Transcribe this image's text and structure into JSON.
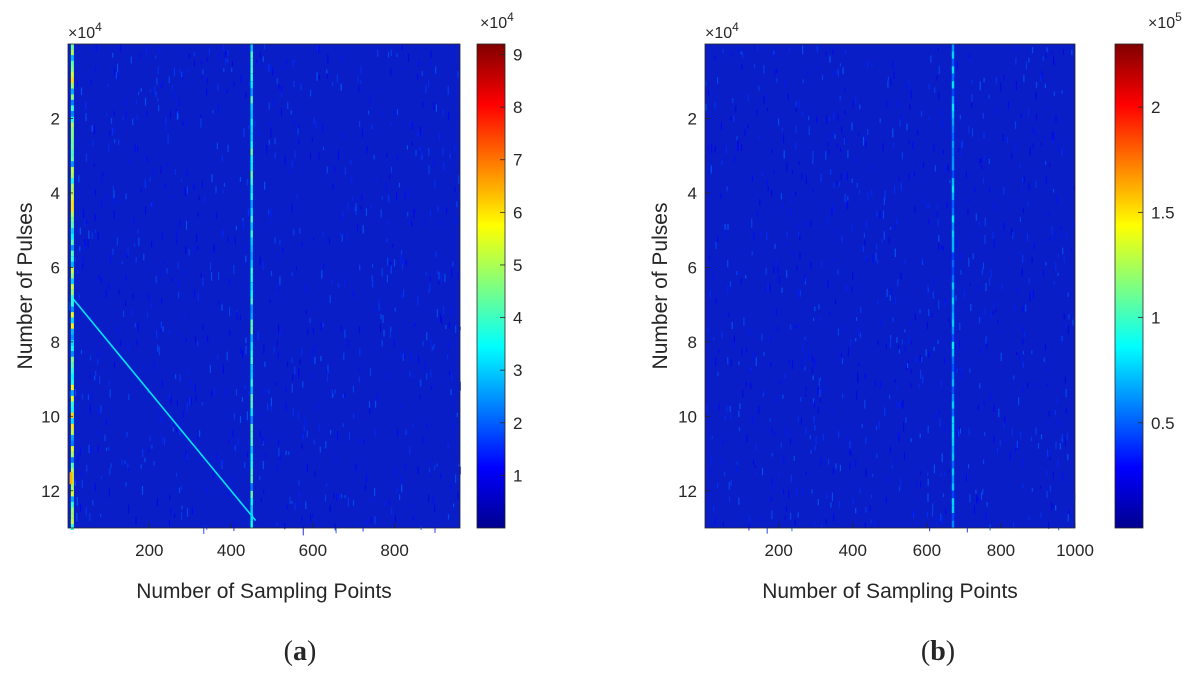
{
  "panel_labels": [
    {
      "open": "(",
      "letter": "a",
      "close": ")"
    },
    {
      "open": "(",
      "letter": "b",
      "close": ")"
    }
  ],
  "chart_data": [
    {
      "type": "heatmap",
      "panel": "a",
      "xlabel": "Number of Sampling Points",
      "ylabel": "Number of Pulses",
      "x_range": [
        1,
        960
      ],
      "y_range": [
        0,
        130000
      ],
      "y_reversed": true,
      "x_ticks": [
        200,
        400,
        600,
        800
      ],
      "y_ticks": [
        2,
        4,
        6,
        8,
        10,
        12
      ],
      "y_multiplier_base": "×10",
      "y_multiplier_exp": "4",
      "colorbar": {
        "colormap": "jet",
        "range": [
          0,
          92000
        ],
        "ticks": [
          1,
          2,
          3,
          4,
          5,
          6,
          7,
          8,
          9
        ],
        "tick_scale": 10000,
        "multiplier_base": "×10",
        "multiplier_exp": "4"
      },
      "background_level": 0.09,
      "features": [
        {
          "kind": "vertical-streak",
          "x": 450,
          "intensity": 0.4
        },
        {
          "kind": "diagonal-line",
          "from": [
            10,
            68000
          ],
          "to": [
            460,
            128000
          ],
          "intensity": 0.35
        },
        {
          "kind": "edge-column",
          "x": 8,
          "intensity": 0.6
        },
        {
          "kind": "hot-spot",
          "x": 5,
          "y": 115000,
          "intensity": 0.7
        }
      ]
    },
    {
      "type": "heatmap",
      "panel": "b",
      "xlabel": "Number of Sampling Points",
      "ylabel": "Number of Pulses",
      "x_range": [
        1,
        1000
      ],
      "y_range": [
        0,
        130000
      ],
      "y_reversed": true,
      "x_ticks": [
        200,
        400,
        600,
        800,
        1000
      ],
      "y_ticks": [
        2,
        4,
        6,
        8,
        10,
        12
      ],
      "y_multiplier_base": "×10",
      "y_multiplier_exp": "4",
      "colorbar": {
        "colormap": "jet",
        "range": [
          0,
          230000
        ],
        "ticks": [
          "0.5",
          "1",
          "1.5",
          "2"
        ],
        "tick_scale": 100000,
        "multiplier_base": "×10",
        "multiplier_exp": "5"
      },
      "background_level": 0.09,
      "features": [
        {
          "kind": "vertical-streak",
          "x": 670,
          "intensity": 0.3
        }
      ]
    }
  ]
}
